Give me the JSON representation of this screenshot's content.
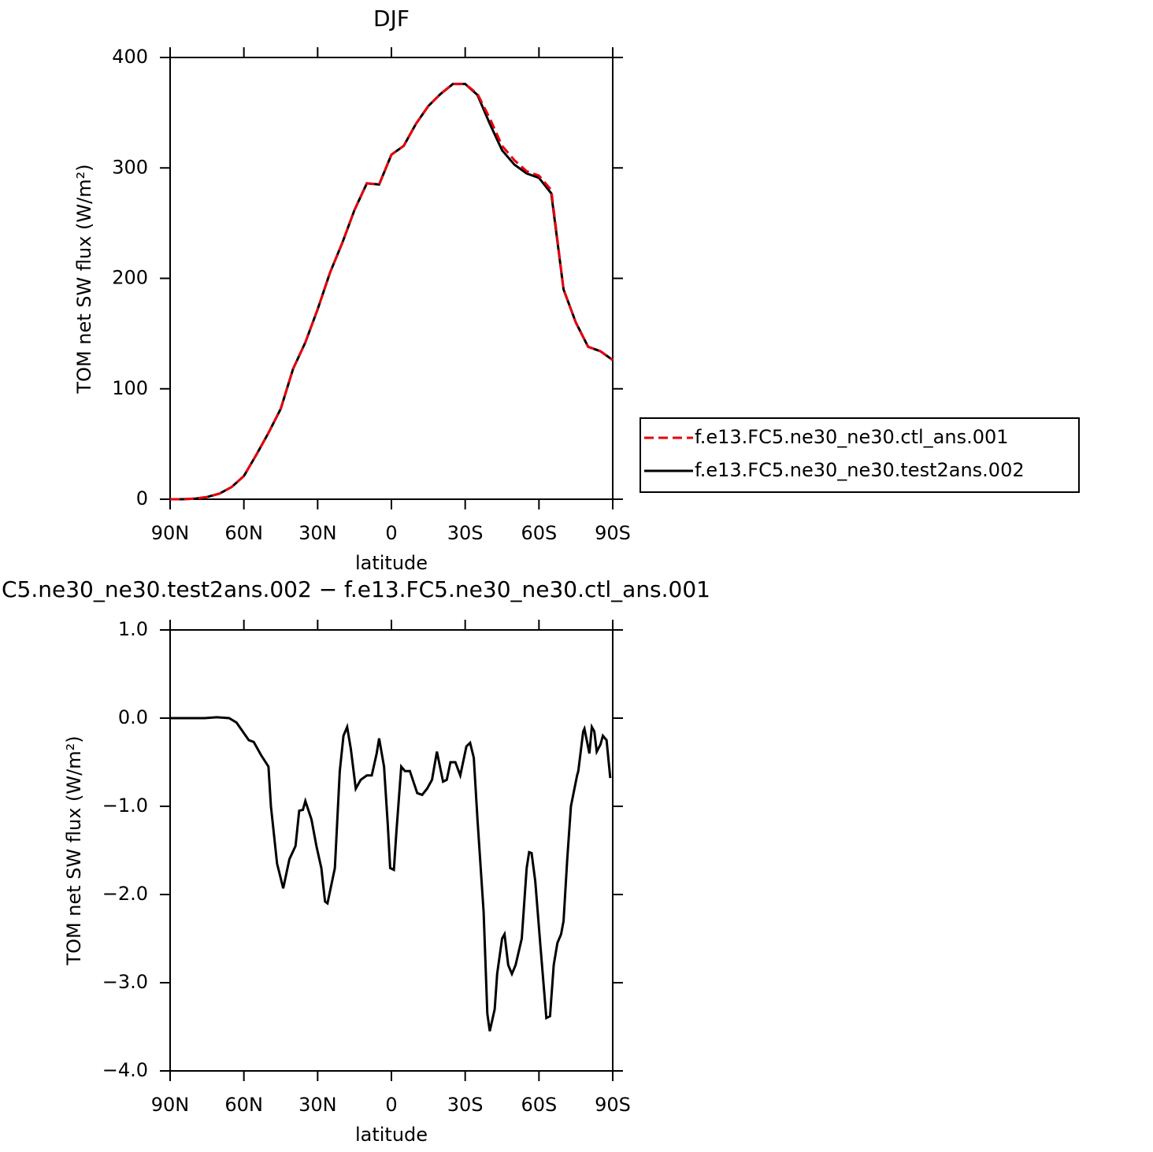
{
  "chart_data": [
    {
      "type": "line",
      "title": "DJF",
      "x_label": "latitude",
      "y_label": "TOM net SW flux (W/m²)",
      "x": [
        90,
        85,
        80,
        75,
        70,
        65,
        60,
        55,
        50,
        45,
        40,
        35,
        30,
        25,
        20,
        15,
        10,
        5,
        0,
        -5,
        -10,
        -15,
        -20,
        -25,
        -30,
        -35,
        -40,
        -45,
        -50,
        -55,
        -60,
        -65,
        -70,
        -75,
        -80,
        -85,
        -90
      ],
      "series": [
        {
          "name": "f.e13.FC5.ne30_ne30.ctl_ans.001",
          "color": "#e8000b",
          "line_style": "dashed",
          "values": [
            0,
            0,
            0.5,
            2,
            5,
            11,
            21,
            40,
            60,
            82,
            118,
            142,
            172,
            205,
            232,
            262,
            286,
            285,
            312,
            320,
            340,
            356,
            367,
            376,
            376,
            367,
            345,
            320,
            307,
            297,
            293,
            280,
            190,
            160,
            138,
            134,
            126
          ]
        },
        {
          "name": "f.e13.FC5.ne30_ne30.test2ans.002",
          "color": "#000000",
          "line_style": "solid",
          "values": [
            0,
            0,
            0.5,
            2,
            5,
            11,
            21,
            40,
            60,
            82,
            118,
            142,
            172,
            205,
            232,
            262,
            286,
            285,
            312,
            320,
            340,
            356,
            367,
            376,
            376,
            366,
            340,
            316,
            303,
            295,
            291,
            277,
            190,
            160,
            138,
            134,
            126
          ]
        }
      ],
      "xlim": [
        90,
        -90
      ],
      "xticks": [
        {
          "value": 90,
          "label": "90N"
        },
        {
          "value": 60,
          "label": "60N"
        },
        {
          "value": 30,
          "label": "30N"
        },
        0,
        {
          "value": -30,
          "label": "30S"
        },
        {
          "value": -60,
          "label": "60S"
        },
        {
          "value": -90,
          "label": "90S"
        }
      ],
      "ylim": [
        0,
        400
      ],
      "yticks": [
        0,
        100,
        200,
        300,
        400
      ],
      "legend": "right"
    },
    {
      "type": "line",
      "title": "C5.ne30_ne30.test2ans.002 − f.e13.FC5.ne30_ne30.ctl_ans.001",
      "x_label": "latitude",
      "y_label": "TOM net SW flux (W/m²)",
      "x": [
        90,
        76,
        71,
        66,
        63,
        58,
        56,
        53,
        50,
        49,
        46.5,
        44,
        41.5,
        39,
        37.5,
        36,
        35,
        32.5,
        30.5,
        28.5,
        27,
        26,
        23,
        21,
        19.5,
        18,
        16.5,
        14.5,
        12.5,
        10,
        8,
        6,
        5,
        3,
        1.5,
        0.5,
        -1,
        -2,
        -4,
        -5.5,
        -7.5,
        -10.5,
        -12.5,
        -14.5,
        -16.5,
        -18.5,
        -21,
        -22.5,
        -24,
        -26,
        -28,
        -30.5,
        -32,
        -33.5,
        -35,
        -37.5,
        -39,
        -40,
        -42,
        -43,
        -45,
        -46,
        -47.5,
        -49,
        -50.5,
        -53,
        -55,
        -56,
        -57,
        -58.5,
        -60.5,
        -63,
        -64.5,
        -66,
        -67.5,
        -69,
        -70,
        -71.5,
        -73,
        -75.5,
        -76,
        -78,
        -78.5,
        -80.5,
        -81.5,
        -82.5,
        -83.5,
        -85,
        -86,
        -87.5,
        -89
      ],
      "values": [
        0,
        0,
        0.01,
        0,
        -0.05,
        -0.25,
        -0.27,
        -0.42,
        -0.55,
        -1.0,
        -1.65,
        -1.93,
        -1.6,
        -1.45,
        -1.05,
        -1.04,
        -0.94,
        -1.15,
        -1.45,
        -1.7,
        -2.08,
        -2.1,
        -1.7,
        -0.6,
        -0.2,
        -0.1,
        -0.35,
        -0.8,
        -0.7,
        -0.65,
        -0.65,
        -0.4,
        -0.23,
        -0.55,
        -1.2,
        -1.7,
        -1.72,
        -1.3,
        -0.55,
        -0.6,
        -0.6,
        -0.85,
        -0.87,
        -0.8,
        -0.7,
        -0.38,
        -0.72,
        -0.7,
        -0.5,
        -0.5,
        -0.65,
        -0.32,
        -0.28,
        -0.45,
        -1.15,
        -2.2,
        -3.35,
        -3.55,
        -3.3,
        -2.9,
        -2.5,
        -2.45,
        -2.8,
        -2.9,
        -2.8,
        -2.5,
        -1.7,
        -1.52,
        -1.53,
        -1.85,
        -2.55,
        -3.4,
        -3.38,
        -2.8,
        -2.55,
        -2.45,
        -2.3,
        -1.6,
        -1.0,
        -0.65,
        -0.6,
        -0.15,
        -0.12,
        -0.4,
        -0.1,
        -0.15,
        -0.38,
        -0.3,
        -0.2,
        -0.25,
        -0.68
      ],
      "color": "#000000",
      "xlim": [
        90,
        -90
      ],
      "xticks": [
        {
          "value": 90,
          "label": "90N"
        },
        {
          "value": 60,
          "label": "60N"
        },
        {
          "value": 30,
          "label": "30N"
        },
        0,
        {
          "value": -30,
          "label": "30S"
        },
        {
          "value": -60,
          "label": "60S"
        },
        {
          "value": -90,
          "label": "90S"
        }
      ],
      "ylim": [
        -4,
        1
      ],
      "yticks": [
        {
          "value": -4,
          "label": "−4.0"
        },
        {
          "value": -3,
          "label": "−3.0"
        },
        {
          "value": -2,
          "label": "−2.0"
        },
        {
          "value": -1,
          "label": "−1.0"
        },
        {
          "value": 0,
          "label": "0.0"
        },
        {
          "value": 1,
          "label": "1.0"
        }
      ]
    }
  ]
}
